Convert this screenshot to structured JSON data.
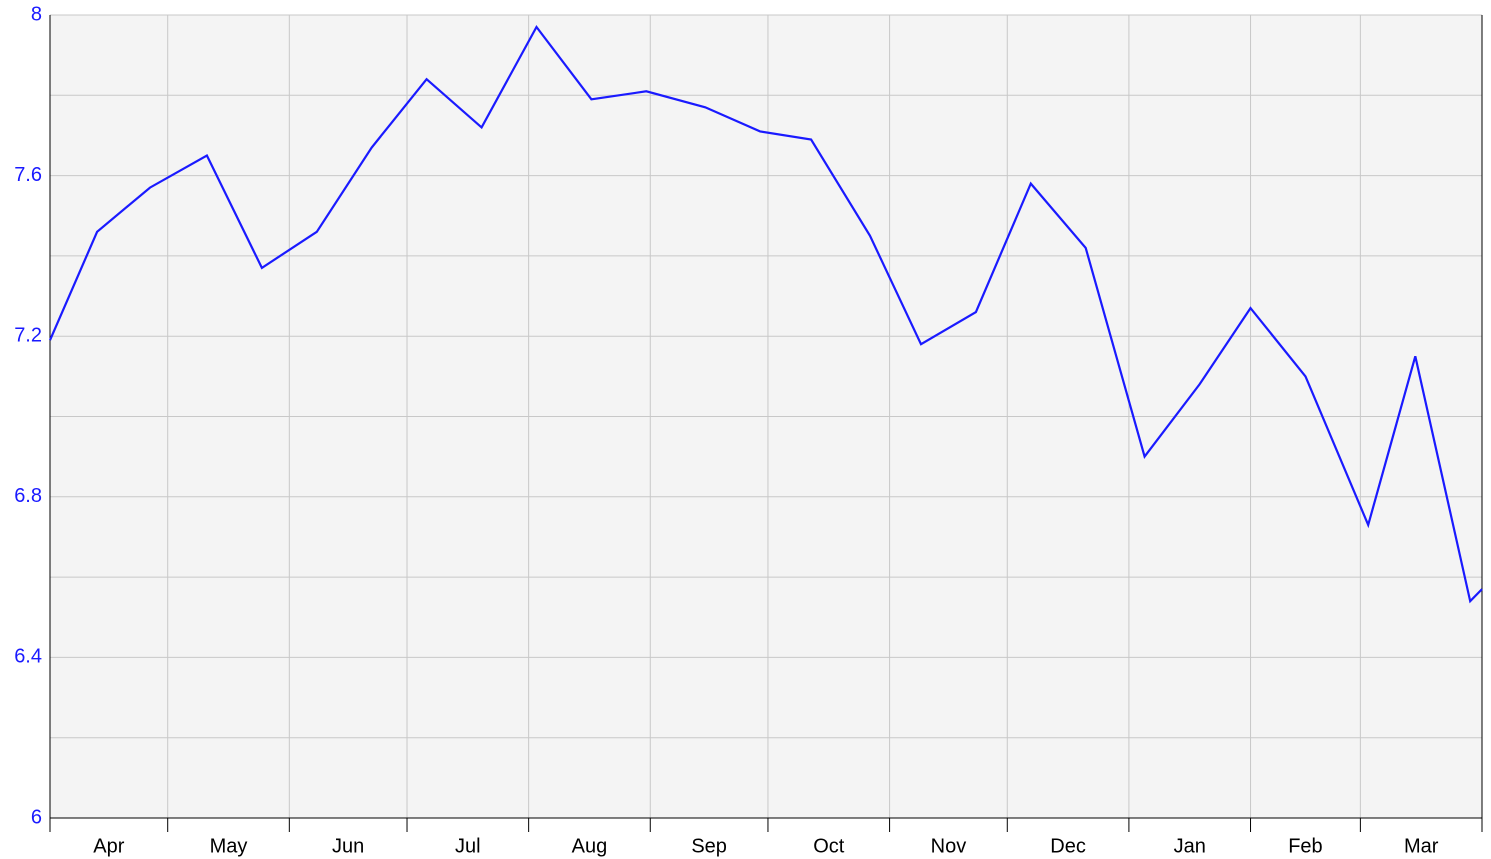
{
  "chart_data": {
    "type": "line",
    "categories": [
      "Apr",
      "May",
      "Jun",
      "Jul",
      "Aug",
      "Sep",
      "Oct",
      "Nov",
      "Dec",
      "Jan",
      "Feb",
      "Mar"
    ],
    "xticks": [
      0,
      30,
      61,
      91,
      122,
      153,
      183,
      214,
      244,
      275,
      306,
      334,
      365
    ],
    "xlim": [
      0,
      365
    ],
    "ylim": [
      6,
      8
    ],
    "yticks": [
      6,
      6.4,
      6.8,
      7.2,
      7.6,
      8
    ],
    "minor_yticks": [
      6.2,
      6.6,
      7.0,
      7.4,
      7.8
    ],
    "grid": true,
    "series": [
      {
        "color": "#1a1aff",
        "x": [
          0,
          12,
          25.5,
          40,
          54,
          68,
          82,
          96,
          110,
          124,
          138,
          152,
          167,
          181,
          194,
          209,
          222,
          236,
          250,
          264,
          279,
          293,
          306,
          320,
          336,
          348,
          362,
          365
        ],
        "values": [
          7.19,
          7.46,
          7.57,
          7.65,
          7.37,
          7.46,
          7.67,
          7.84,
          7.72,
          7.97,
          7.79,
          7.81,
          7.77,
          7.71,
          7.69,
          7.45,
          7.18,
          7.26,
          7.58,
          7.42,
          6.9,
          7.08,
          7.27,
          7.1,
          6.73,
          7.15,
          6.54,
          6.57
        ]
      }
    ]
  }
}
